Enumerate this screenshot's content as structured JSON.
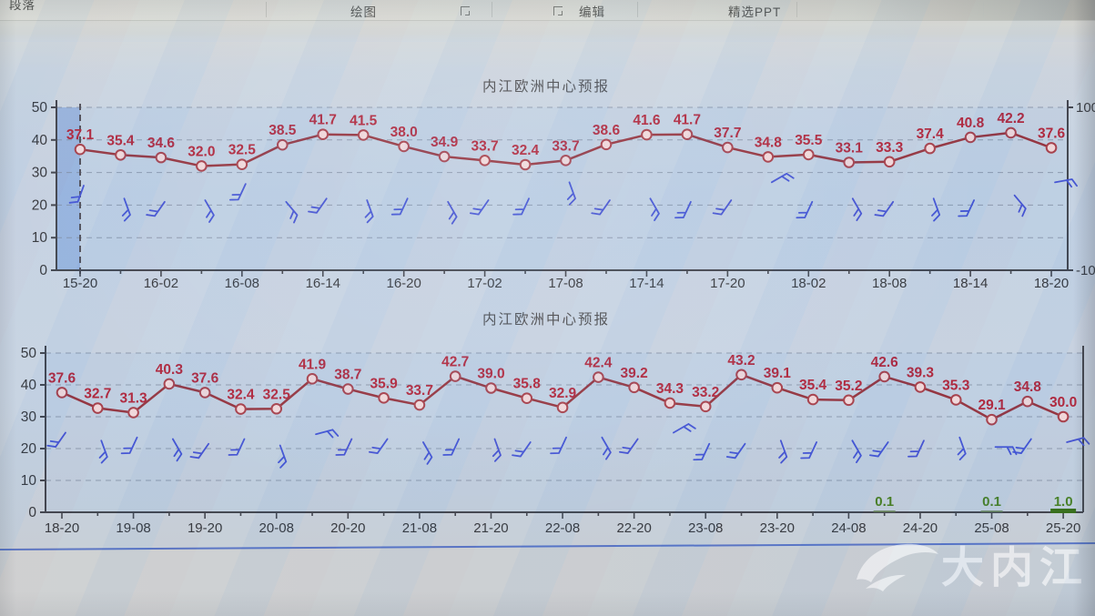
{
  "toolbar": {
    "groups": [
      "段落",
      "绘图",
      "编辑",
      "精选PPT"
    ]
  },
  "watermark": {
    "text": "大内江"
  },
  "colors": {
    "line": "#8f2e3a",
    "marker_fill": "#efd6d9",
    "marker_stroke": "#a23a46",
    "value_label": "#ab2037",
    "barb": "#3c4ed2",
    "grid": "#76849a",
    "axis": "#3a3f49",
    "tick_text": "#2e3238",
    "title": "#45474b",
    "precip_text": "#3f7a1e",
    "precip_bar": "#2e6812",
    "highlight_band": "rgba(104,148,216,0.5)",
    "dashed_line": "#4a4a55",
    "blue_line": "#3d5fc0"
  },
  "chart_data": [
    {
      "type": "line",
      "title": "内江欧洲中心预报",
      "x_tick_labels": [
        "15-20",
        "16-02",
        "16-08",
        "16-14",
        "16-20",
        "17-02",
        "17-08",
        "17-14",
        "17-20",
        "18-02",
        "18-08",
        "18-14",
        "18-20"
      ],
      "tick_every": 2,
      "values": [
        37.1,
        35.4,
        34.6,
        32.0,
        32.5,
        38.5,
        41.7,
        41.5,
        38.0,
        34.9,
        33.7,
        32.4,
        33.7,
        38.6,
        41.6,
        41.7,
        37.7,
        34.8,
        35.5,
        33.1,
        33.3,
        37.4,
        40.8,
        42.2,
        37.6
      ],
      "ylim": [
        0,
        50
      ],
      "yticks": [
        0,
        10,
        20,
        30,
        40,
        50
      ],
      "right_axis_labels": {
        "top": "100",
        "bottom": "-10"
      },
      "grid": "dashed horizontal",
      "first_point_highlight": true,
      "first_point_dashed_line": true,
      "barb_v": [
        26,
        22,
        21,
        21.5,
        26.5,
        21,
        22,
        21.5,
        22,
        21,
        21.5,
        22,
        27,
        21.5,
        22,
        21,
        21.5,
        27,
        21,
        22,
        21,
        22,
        21.5,
        23,
        27
      ],
      "barb_a": [
        200,
        160,
        215,
        150,
        205,
        140,
        215,
        160,
        205,
        150,
        215,
        205,
        160,
        215,
        150,
        205,
        215,
        60,
        205,
        150,
        215,
        160,
        205,
        140,
        80
      ]
    },
    {
      "type": "line",
      "title": "内江欧洲中心预报",
      "x_tick_labels": [
        "18-20",
        "19-08",
        "19-20",
        "20-08",
        "20-20",
        "21-08",
        "21-20",
        "22-08",
        "22-20",
        "23-08",
        "23-20",
        "24-08",
        "24-20",
        "25-08",
        "25-20"
      ],
      "tick_every": 2,
      "values": [
        37.6,
        32.7,
        31.3,
        40.3,
        37.6,
        32.4,
        32.5,
        41.9,
        38.7,
        35.9,
        33.7,
        42.7,
        39.0,
        35.8,
        32.9,
        42.4,
        39.2,
        34.3,
        33.2,
        43.2,
        39.1,
        35.4,
        35.2,
        42.6,
        39.3,
        35.3,
        29.1,
        34.8,
        30.0
      ],
      "ylim": [
        0,
        50
      ],
      "yticks": [
        0,
        10,
        20,
        30,
        40,
        50
      ],
      "grid": "dashed horizontal",
      "precip_labels": [
        {
          "i": 23,
          "v": "0.1",
          "bar": false
        },
        {
          "i": 26,
          "v": "0.1",
          "bar": false
        },
        {
          "i": 28,
          "v": "1.0",
          "bar": true
        }
      ],
      "barb_v": [
        25,
        22.5,
        23.5,
        23,
        21.5,
        23,
        21,
        24.5,
        23,
        23,
        22,
        23,
        23,
        22,
        23.5,
        23.5,
        23,
        25,
        21.5,
        21.5,
        22.5,
        22,
        22.5,
        22,
        22.5,
        23.5,
        20.5,
        23,
        22
      ],
      "barb_a": [
        215,
        160,
        205,
        150,
        215,
        205,
        160,
        75,
        205,
        215,
        150,
        205,
        160,
        215,
        205,
        150,
        215,
        60,
        205,
        215,
        160,
        205,
        150,
        215,
        205,
        160,
        90,
        215,
        75
      ]
    }
  ]
}
